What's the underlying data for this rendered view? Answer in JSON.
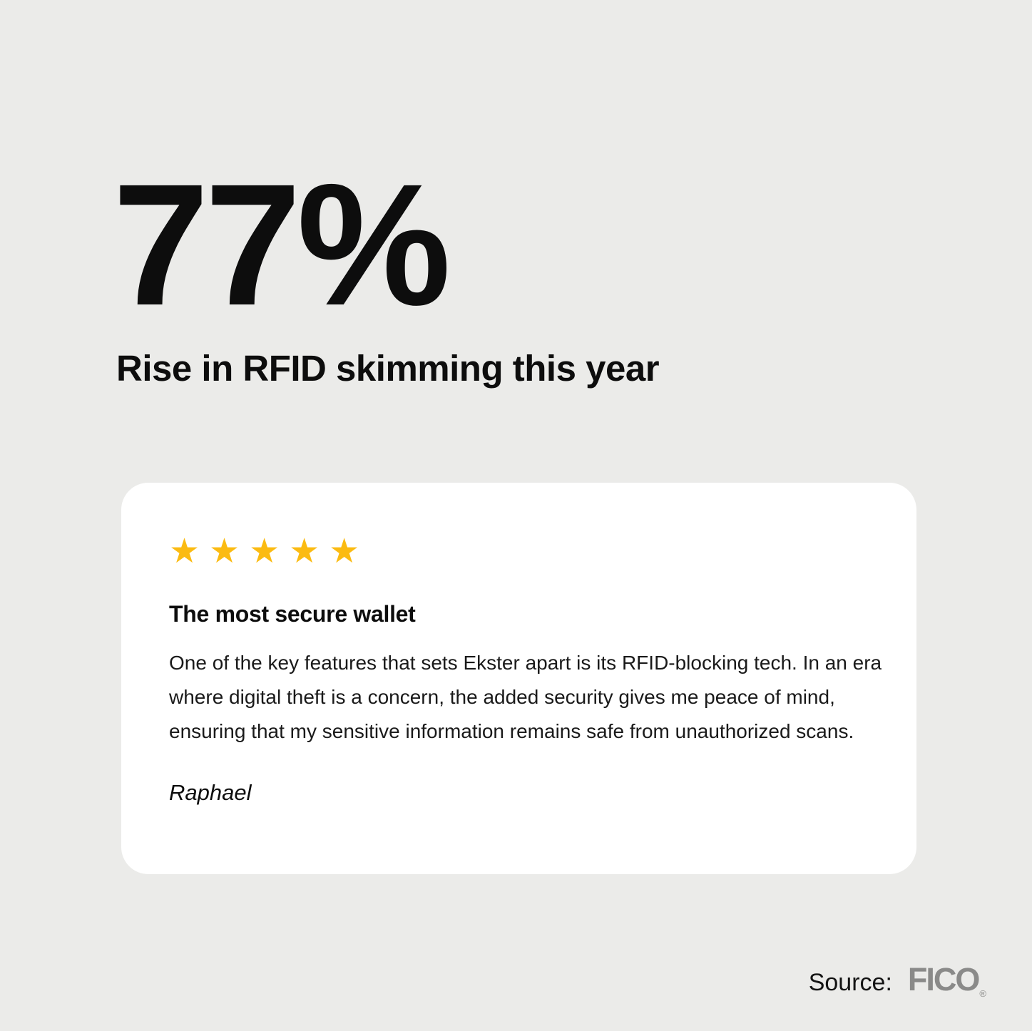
{
  "page": {
    "background_color": "#ebebe9",
    "text_color": "#0d0d0d"
  },
  "headline": {
    "stat": "77%",
    "subtitle": "Rise in RFID skimming this year"
  },
  "review_card": {
    "background_color": "#ffffff",
    "rating": 5,
    "rating_max": 5,
    "stars_text": "★★★★★",
    "star_color": "#fbbb12",
    "title": "The most secure wallet",
    "body": "One of the key features that sets Ekster apart is its RFID-blocking tech. In an era where digital theft is a concern, the added security gives me peace of mind, ensuring that my sensitive information remains safe from unauthorized scans.",
    "author": "Raphael"
  },
  "source": {
    "label": "Source:",
    "name": "FICO",
    "registered_mark": "®",
    "logo_color": "#8a8a89"
  }
}
